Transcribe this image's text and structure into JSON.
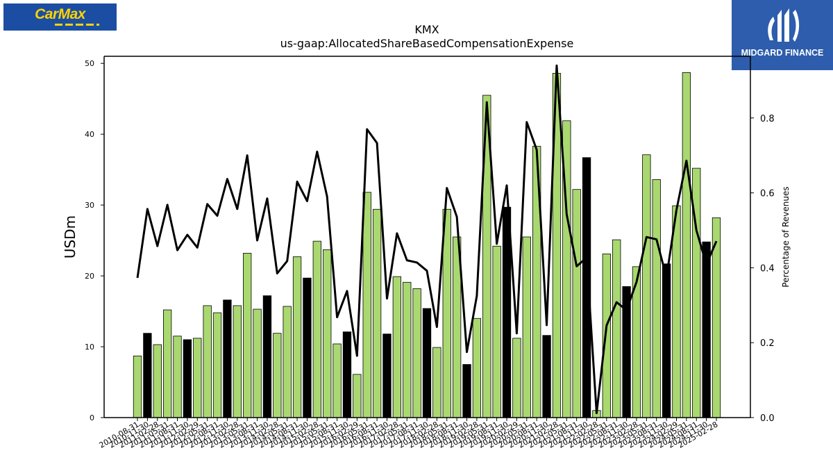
{
  "logos": {
    "left": {
      "text": "CarMax",
      "icon": "carmax-logo"
    },
    "right": {
      "text": "MIDGARD FINANCE",
      "icon": "midgard-finance-logo"
    }
  },
  "colors": {
    "bar_green": "#a9d870",
    "bar_black": "#000000",
    "line": "#000000"
  },
  "chart_data": {
    "type": "bar",
    "title": "KMX",
    "subtitle": "us-gaap:AllocatedShareBasedCompensationExpense",
    "ylabel": "USDm",
    "y2label": "Percentage of Revenues",
    "ylim": [
      0,
      51
    ],
    "y2lim": [
      0,
      0.9647
    ],
    "yticks": [
      "0",
      "10",
      "20",
      "30",
      "40",
      "50"
    ],
    "y2ticks": [
      "0.0",
      "0.2",
      "0.4",
      "0.6",
      "0.8"
    ],
    "categories": [
      "2010-08-31",
      "2010-11-30",
      "2011-02-28",
      "2011-05-31",
      "2011-08-31",
      "2011-11-30",
      "2012-02-29",
      "2012-05-31",
      "2012-08-31",
      "2012-11-30",
      "2013-02-28",
      "2013-05-31",
      "2013-08-31",
      "2013-11-30",
      "2014-02-28",
      "2014-05-31",
      "2014-08-31",
      "2014-11-30",
      "2015-02-28",
      "2015-05-31",
      "2015-08-31",
      "2015-11-30",
      "2016-02-29",
      "2016-05-31",
      "2016-08-31",
      "2016-11-30",
      "2017-02-28",
      "2017-05-31",
      "2017-08-31",
      "2017-11-30",
      "2018-02-28",
      "2018-05-31",
      "2018-08-31",
      "2018-11-30",
      "2019-02-28",
      "2019-05-31",
      "2019-08-31",
      "2019-11-30",
      "2020-02-29",
      "2020-05-31",
      "2020-08-31",
      "2020-11-30",
      "2021-02-28",
      "2021-05-31",
      "2021-08-31",
      "2021-11-30",
      "2022-02-28",
      "2022-05-31",
      "2022-08-31",
      "2022-11-30",
      "2023-02-28",
      "2023-05-31",
      "2023-08-31",
      "2023-11-30",
      "2024-02-29",
      "2024-05-31",
      "2024-08-31",
      "2024-11-30",
      "2025-02-28"
    ],
    "series": [
      {
        "kind": "bar",
        "values": [
          8.7,
          11.9,
          10.3,
          15.2,
          11.5,
          11.0,
          11.2,
          15.8,
          14.8,
          16.6,
          15.8,
          23.2,
          15.3,
          17.2,
          11.9,
          15.7,
          22.7,
          19.7,
          24.9,
          23.7,
          10.4,
          12.1,
          6.1,
          31.8,
          29.4,
          11.8,
          19.9,
          19.1,
          18.2,
          15.4,
          9.9,
          29.4,
          25.5,
          7.5,
          14.0,
          45.5,
          24.2,
          29.7,
          11.2,
          25.5,
          38.3,
          11.6,
          48.6,
          41.9,
          32.2,
          36.7,
          1.0,
          23.1,
          25.1,
          18.5,
          21.3,
          37.1,
          33.6,
          21.7,
          29.9,
          48.7,
          35.2,
          24.8,
          28.2
        ],
        "black": [
          false,
          true,
          false,
          false,
          false,
          true,
          false,
          false,
          false,
          true,
          false,
          false,
          false,
          true,
          false,
          false,
          false,
          true,
          false,
          false,
          false,
          true,
          false,
          false,
          false,
          true,
          false,
          false,
          false,
          true,
          false,
          false,
          false,
          true,
          false,
          false,
          false,
          true,
          false,
          false,
          false,
          true,
          false,
          false,
          false,
          true,
          false,
          false,
          false,
          true,
          false,
          false,
          false,
          true,
          false,
          false,
          false,
          true,
          false
        ]
      },
      {
        "kind": "line",
        "axis": "right",
        "values": [
          0.373,
          0.557,
          0.458,
          0.568,
          0.447,
          0.488,
          0.454,
          0.57,
          0.539,
          0.637,
          0.557,
          0.7,
          0.473,
          0.585,
          0.385,
          0.418,
          0.63,
          0.578,
          0.71,
          0.59,
          0.268,
          0.338,
          0.165,
          0.77,
          0.733,
          0.318,
          0.492,
          0.42,
          0.414,
          0.392,
          0.242,
          0.613,
          0.536,
          0.175,
          0.325,
          0.842,
          0.464,
          0.62,
          0.225,
          0.789,
          0.715,
          0.247,
          0.94,
          0.543,
          0.404,
          0.427,
          0.012,
          0.246,
          0.308,
          0.287,
          0.362,
          0.482,
          0.476,
          0.374,
          0.554,
          0.686,
          0.5,
          0.409,
          0.471
        ]
      }
    ]
  }
}
